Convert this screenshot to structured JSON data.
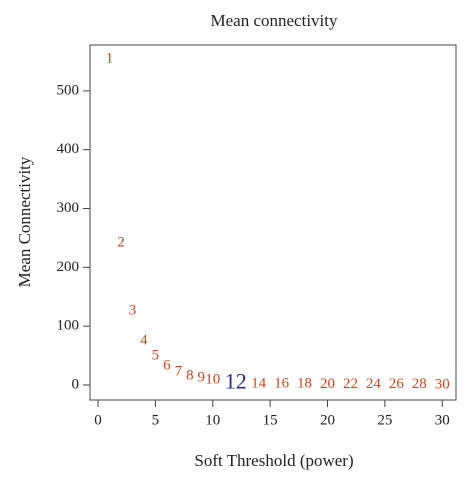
{
  "chart_data": {
    "type": "scatter",
    "title": "Mean connectivity",
    "x_label": "Soft Threshold (power)",
    "y_label": "Mean Connectivity",
    "xlim": [
      -0.7,
      31.2
    ],
    "ylim": [
      -25.5,
      578
    ],
    "xticks": [
      0,
      5,
      10,
      15,
      20,
      25,
      30
    ],
    "yticks": [
      0,
      100,
      200,
      300,
      400,
      500
    ],
    "series": [
      {
        "color": "#c8461e",
        "x": [
          1,
          2,
          3,
          4,
          5,
          6,
          7,
          8,
          9,
          10,
          14,
          16,
          18,
          20,
          22,
          24,
          26,
          28,
          30
        ],
        "values": [
          554,
          241,
          126,
          75,
          49,
          32,
          22,
          15,
          12,
          8,
          2,
          1.5,
          1.2,
          1,
          0.8,
          0.6,
          0.5,
          0.4,
          0.3
        ]
      },
      {
        "color": "#2b2a80",
        "x": [
          12
        ],
        "values": [
          3
        ]
      }
    ]
  }
}
